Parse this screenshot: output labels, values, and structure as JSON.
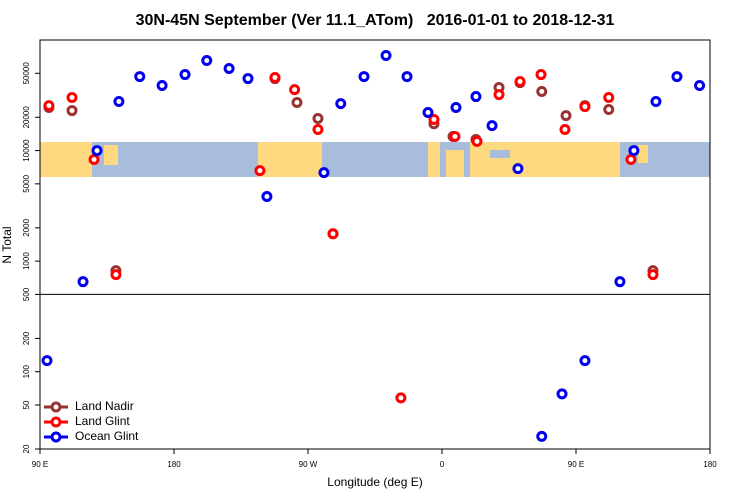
{
  "chart_data": {
    "type": "scatter",
    "title": "30N-45N September (Ver 11.1_ATom)   2016-01-01 to 2018-12-31",
    "x_label": "Longitude (deg E)",
    "y_label": "N Total",
    "xlim": [
      90,
      540
    ],
    "xticks": [
      {
        "value": 90,
        "label": "90 E"
      },
      {
        "value": 180,
        "label": "180"
      },
      {
        "value": 270,
        "label": "90 W"
      },
      {
        "value": 360,
        "label": "0"
      },
      {
        "value": 450,
        "label": "90 E"
      },
      {
        "value": 540,
        "label": "180"
      }
    ],
    "ylim": [
      20,
      100000
    ],
    "yticks": [
      20,
      50,
      100,
      200,
      500,
      1000,
      2000,
      5000,
      10000,
      20000,
      50000
    ],
    "y_log": true,
    "hline": 500,
    "legend": "lower left",
    "series": [
      {
        "name": "Land Nadir",
        "color": "#993333",
        "x": [
          96,
          111.5,
          141,
          247.8,
          262.6,
          276.7,
          286.8,
          354.6,
          367.4,
          382.8,
          398.3,
          412.4,
          427,
          443.3,
          456,
          472,
          501.7
        ],
        "values": [
          24500,
          23000,
          820,
          44800,
          27200,
          19500,
          1770,
          17500,
          13400,
          12600,
          37200,
          41200,
          34200,
          20700,
          25500,
          23500,
          820
        ]
      },
      {
        "name": "Land Glint",
        "color": "#ff0000",
        "x": [
          96,
          111.5,
          126.3,
          141,
          237.7,
          247.8,
          261,
          276.7,
          286.8,
          332.4,
          354.6,
          368.7,
          383.5,
          398.3,
          412.4,
          426.5,
          442.6,
          456,
          472,
          486.9,
          501.7
        ],
        "values": [
          25500,
          30200,
          8300,
          755,
          6590,
          45800,
          35600,
          15500,
          1770,
          58,
          19100,
          13400,
          12100,
          32100,
          42100,
          48700,
          15500,
          25000,
          30200,
          8300,
          755
        ]
      },
      {
        "name": "Ocean Glint",
        "color": "#0000ee",
        "x": [
          94.7,
          118.9,
          128.3,
          143,
          157,
          172,
          187.4,
          202,
          217,
          229.7,
          242.4,
          280.7,
          292,
          307.6,
          322.4,
          336.5,
          350.6,
          369.4,
          382.8,
          393.6,
          411,
          427,
          440.6,
          456,
          479.5,
          488.9,
          503.7,
          517.8,
          533
        ],
        "values": [
          126,
          652,
          10000,
          27800,
          46700,
          38800,
          48700,
          65200,
          55200,
          44800,
          3840,
          6320,
          26600,
          46700,
          72400,
          46700,
          22100,
          24500,
          30800,
          16800,
          6870,
          26,
          63,
          126,
          652,
          10000,
          27800,
          46700,
          38800
        ]
      }
    ]
  }
}
